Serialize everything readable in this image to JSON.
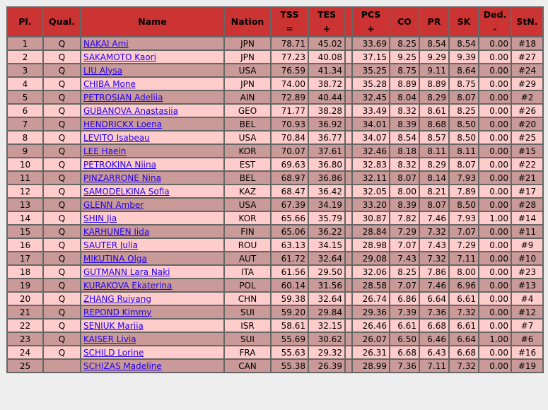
{
  "colors": {
    "header": "#cc3333",
    "row_odd": "#c99a98",
    "row_even": "#ffcccc",
    "link": "#2200ee"
  },
  "headers": {
    "pl": "Pl.",
    "qual": "Qual.",
    "name": "Name",
    "nation": "Nation",
    "tss": "TSS",
    "tss_sub": "=",
    "tes": "TES",
    "tes_sub": "+",
    "pcs": "PCS",
    "pcs_sub": "+",
    "co": "CO",
    "pr": "PR",
    "sk": "SK",
    "ded": "Ded.",
    "ded_sub": "-",
    "stn": "StN."
  },
  "rows": [
    {
      "pl": "1",
      "qual": "Q",
      "name": "NAKAI Ami",
      "nation": "JPN",
      "tss": "78.71",
      "tes": "45.02",
      "pcs": "33.69",
      "co": "8.25",
      "pr": "8.54",
      "sk": "8.54",
      "ded": "0.00",
      "stn": "#18"
    },
    {
      "pl": "2",
      "qual": "Q",
      "name": "SAKAMOTO Kaori",
      "nation": "JPN",
      "tss": "77.23",
      "tes": "40.08",
      "pcs": "37.15",
      "co": "9.25",
      "pr": "9.29",
      "sk": "9.39",
      "ded": "0.00",
      "stn": "#27"
    },
    {
      "pl": "3",
      "qual": "Q",
      "name": "LIU Alysa",
      "nation": "USA",
      "tss": "76.59",
      "tes": "41.34",
      "pcs": "35.25",
      "co": "8.75",
      "pr": "9.11",
      "sk": "8.64",
      "ded": "0.00",
      "stn": "#24"
    },
    {
      "pl": "4",
      "qual": "Q",
      "name": "CHIBA Mone",
      "nation": "JPN",
      "tss": "74.00",
      "tes": "38.72",
      "pcs": "35.28",
      "co": "8.89",
      "pr": "8.89",
      "sk": "8.75",
      "ded": "0.00",
      "stn": "#29"
    },
    {
      "pl": "5",
      "qual": "Q",
      "name": "PETROSIAN Adeliia",
      "nation": "AIN",
      "tss": "72.89",
      "tes": "40.44",
      "pcs": "32.45",
      "co": "8.04",
      "pr": "8.29",
      "sk": "8.07",
      "ded": "0.00",
      "stn": "#2"
    },
    {
      "pl": "6",
      "qual": "Q",
      "name": "GUBANOVA Anastasiia",
      "nation": "GEO",
      "tss": "71.77",
      "tes": "38.28",
      "pcs": "33.49",
      "co": "8.32",
      "pr": "8.61",
      "sk": "8.25",
      "ded": "0.00",
      "stn": "#26"
    },
    {
      "pl": "7",
      "qual": "Q",
      "name": "HENDRICKX Loena",
      "nation": "BEL",
      "tss": "70.93",
      "tes": "36.92",
      "pcs": "34.01",
      "co": "8.39",
      "pr": "8.68",
      "sk": "8.50",
      "ded": "0.00",
      "stn": "#20"
    },
    {
      "pl": "8",
      "qual": "Q",
      "name": "LEVITO Isabeau",
      "nation": "USA",
      "tss": "70.84",
      "tes": "36.77",
      "pcs": "34.07",
      "co": "8.54",
      "pr": "8.57",
      "sk": "8.50",
      "ded": "0.00",
      "stn": "#25"
    },
    {
      "pl": "9",
      "qual": "Q",
      "name": "LEE Haein",
      "nation": "KOR",
      "tss": "70.07",
      "tes": "37.61",
      "pcs": "32.46",
      "co": "8.18",
      "pr": "8.11",
      "sk": "8.11",
      "ded": "0.00",
      "stn": "#15"
    },
    {
      "pl": "10",
      "qual": "Q",
      "name": "PETROKINA Niina",
      "nation": "EST",
      "tss": "69.63",
      "tes": "36.80",
      "pcs": "32.83",
      "co": "8.32",
      "pr": "8.29",
      "sk": "8.07",
      "ded": "0.00",
      "stn": "#22"
    },
    {
      "pl": "11",
      "qual": "Q",
      "name": "PINZARRONE Nina",
      "nation": "BEL",
      "tss": "68.97",
      "tes": "36.86",
      "pcs": "32.11",
      "co": "8.07",
      "pr": "8.14",
      "sk": "7.93",
      "ded": "0.00",
      "stn": "#21"
    },
    {
      "pl": "12",
      "qual": "Q",
      "name": "SAMODELKINA Sofia",
      "nation": "KAZ",
      "tss": "68.47",
      "tes": "36.42",
      "pcs": "32.05",
      "co": "8.00",
      "pr": "8.21",
      "sk": "7.89",
      "ded": "0.00",
      "stn": "#17"
    },
    {
      "pl": "13",
      "qual": "Q",
      "name": "GLENN Amber",
      "nation": "USA",
      "tss": "67.39",
      "tes": "34.19",
      "pcs": "33.20",
      "co": "8.39",
      "pr": "8.07",
      "sk": "8.50",
      "ded": "0.00",
      "stn": "#28"
    },
    {
      "pl": "14",
      "qual": "Q",
      "name": "SHIN Jia",
      "nation": "KOR",
      "tss": "65.66",
      "tes": "35.79",
      "pcs": "30.87",
      "co": "7.82",
      "pr": "7.46",
      "sk": "7.93",
      "ded": "1.00",
      "stn": "#14"
    },
    {
      "pl": "15",
      "qual": "Q",
      "name": "KARHUNEN Iida",
      "nation": "FIN",
      "tss": "65.06",
      "tes": "36.22",
      "pcs": "28.84",
      "co": "7.29",
      "pr": "7.32",
      "sk": "7.07",
      "ded": "0.00",
      "stn": "#11"
    },
    {
      "pl": "16",
      "qual": "Q",
      "name": "SAUTER Julia",
      "nation": "ROU",
      "tss": "63.13",
      "tes": "34.15",
      "pcs": "28.98",
      "co": "7.07",
      "pr": "7.43",
      "sk": "7.29",
      "ded": "0.00",
      "stn": "#9"
    },
    {
      "pl": "17",
      "qual": "Q",
      "name": "MIKUTINA Olga",
      "nation": "AUT",
      "tss": "61.72",
      "tes": "32.64",
      "pcs": "29.08",
      "co": "7.43",
      "pr": "7.32",
      "sk": "7.11",
      "ded": "0.00",
      "stn": "#10"
    },
    {
      "pl": "18",
      "qual": "Q",
      "name": "GUTMANN Lara Naki",
      "nation": "ITA",
      "tss": "61.56",
      "tes": "29.50",
      "pcs": "32.06",
      "co": "8.25",
      "pr": "7.86",
      "sk": "8.00",
      "ded": "0.00",
      "stn": "#23"
    },
    {
      "pl": "19",
      "qual": "Q",
      "name": "KURAKOVA Ekaterina",
      "nation": "POL",
      "tss": "60.14",
      "tes": "31.56",
      "pcs": "28.58",
      "co": "7.07",
      "pr": "7.46",
      "sk": "6.96",
      "ded": "0.00",
      "stn": "#13"
    },
    {
      "pl": "20",
      "qual": "Q",
      "name": "ZHANG Ruiyang",
      "nation": "CHN",
      "tss": "59.38",
      "tes": "32.64",
      "pcs": "26.74",
      "co": "6.86",
      "pr": "6.64",
      "sk": "6.61",
      "ded": "0.00",
      "stn": "#4"
    },
    {
      "pl": "21",
      "qual": "Q",
      "name": "REPOND Kimmy",
      "nation": "SUI",
      "tss": "59.20",
      "tes": "29.84",
      "pcs": "29.36",
      "co": "7.39",
      "pr": "7.36",
      "sk": "7.32",
      "ded": "0.00",
      "stn": "#12"
    },
    {
      "pl": "22",
      "qual": "Q",
      "name": "SENIUK Mariia",
      "nation": "ISR",
      "tss": "58.61",
      "tes": "32.15",
      "pcs": "26.46",
      "co": "6.61",
      "pr": "6.68",
      "sk": "6.61",
      "ded": "0.00",
      "stn": "#7"
    },
    {
      "pl": "23",
      "qual": "Q",
      "name": "KAISER Livia",
      "nation": "SUI",
      "tss": "55.69",
      "tes": "30.62",
      "pcs": "26.07",
      "co": "6.50",
      "pr": "6.46",
      "sk": "6.64",
      "ded": "1.00",
      "stn": "#6"
    },
    {
      "pl": "24",
      "qual": "Q",
      "name": "SCHILD Lorine",
      "nation": "FRA",
      "tss": "55.63",
      "tes": "29.32",
      "pcs": "26.31",
      "co": "6.68",
      "pr": "6.43",
      "sk": "6.68",
      "ded": "0.00",
      "stn": "#16"
    },
    {
      "pl": "25",
      "qual": "",
      "name": "SCHIZAS Madeline",
      "nation": "CAN",
      "tss": "55.38",
      "tes": "26.39",
      "pcs": "28.99",
      "co": "7.36",
      "pr": "7.11",
      "sk": "7.32",
      "ded": "0.00",
      "stn": "#19"
    }
  ]
}
